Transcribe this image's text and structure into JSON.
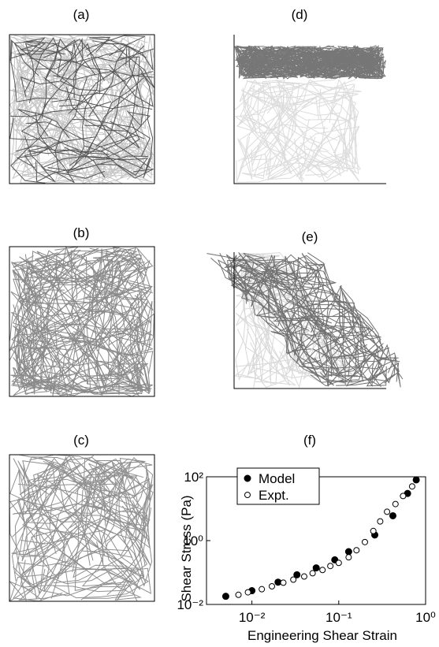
{
  "panels": [
    {
      "label": "(a)"
    },
    {
      "label": "(b)"
    },
    {
      "label": "(c)"
    },
    {
      "label": "(d)"
    },
    {
      "label": "(e)"
    }
  ],
  "chart_data": {
    "type": "scatter",
    "title": "(f)",
    "x_label": "Engineering Shear Strain",
    "y_label": "Shear Stress (Pa)",
    "log_x": true,
    "log_y": true,
    "legend": "top-left",
    "xlim": [
      0.003,
      1
    ],
    "ylim": [
      0.01,
      100
    ],
    "xticks": [
      {
        "value": 0.01,
        "label": "10⁻²"
      },
      {
        "value": 0.1,
        "label": "10⁻¹"
      },
      {
        "value": 1,
        "label": "10⁰"
      }
    ],
    "yticks": [
      {
        "value": 0.01,
        "label": "10⁻²"
      },
      {
        "value": 1,
        "label": "10⁰"
      },
      {
        "value": 100,
        "label": "10²"
      }
    ],
    "series": [
      {
        "name": "Model",
        "color": "#000000",
        "marker": "filled",
        "x": [
          0.005,
          0.01,
          0.02,
          0.033,
          0.055,
          0.09,
          0.13,
          0.26,
          0.42,
          0.62,
          0.78
        ],
        "values": [
          0.018,
          0.027,
          0.05,
          0.085,
          0.14,
          0.25,
          0.45,
          1.5,
          6,
          30,
          80
        ]
      },
      {
        "name": "Expt.",
        "color": "#000000",
        "marker": "open",
        "x": [
          0.007,
          0.009,
          0.013,
          0.017,
          0.023,
          0.03,
          0.04,
          0.05,
          0.065,
          0.08,
          0.1,
          0.13,
          0.16,
          0.2,
          0.25,
          0.3,
          0.36,
          0.45,
          0.55,
          0.7
        ],
        "values": [
          0.02,
          0.024,
          0.03,
          0.037,
          0.048,
          0.06,
          0.075,
          0.095,
          0.12,
          0.16,
          0.2,
          0.3,
          0.5,
          0.9,
          2,
          4,
          8,
          14,
          25,
          50
        ]
      }
    ]
  }
}
